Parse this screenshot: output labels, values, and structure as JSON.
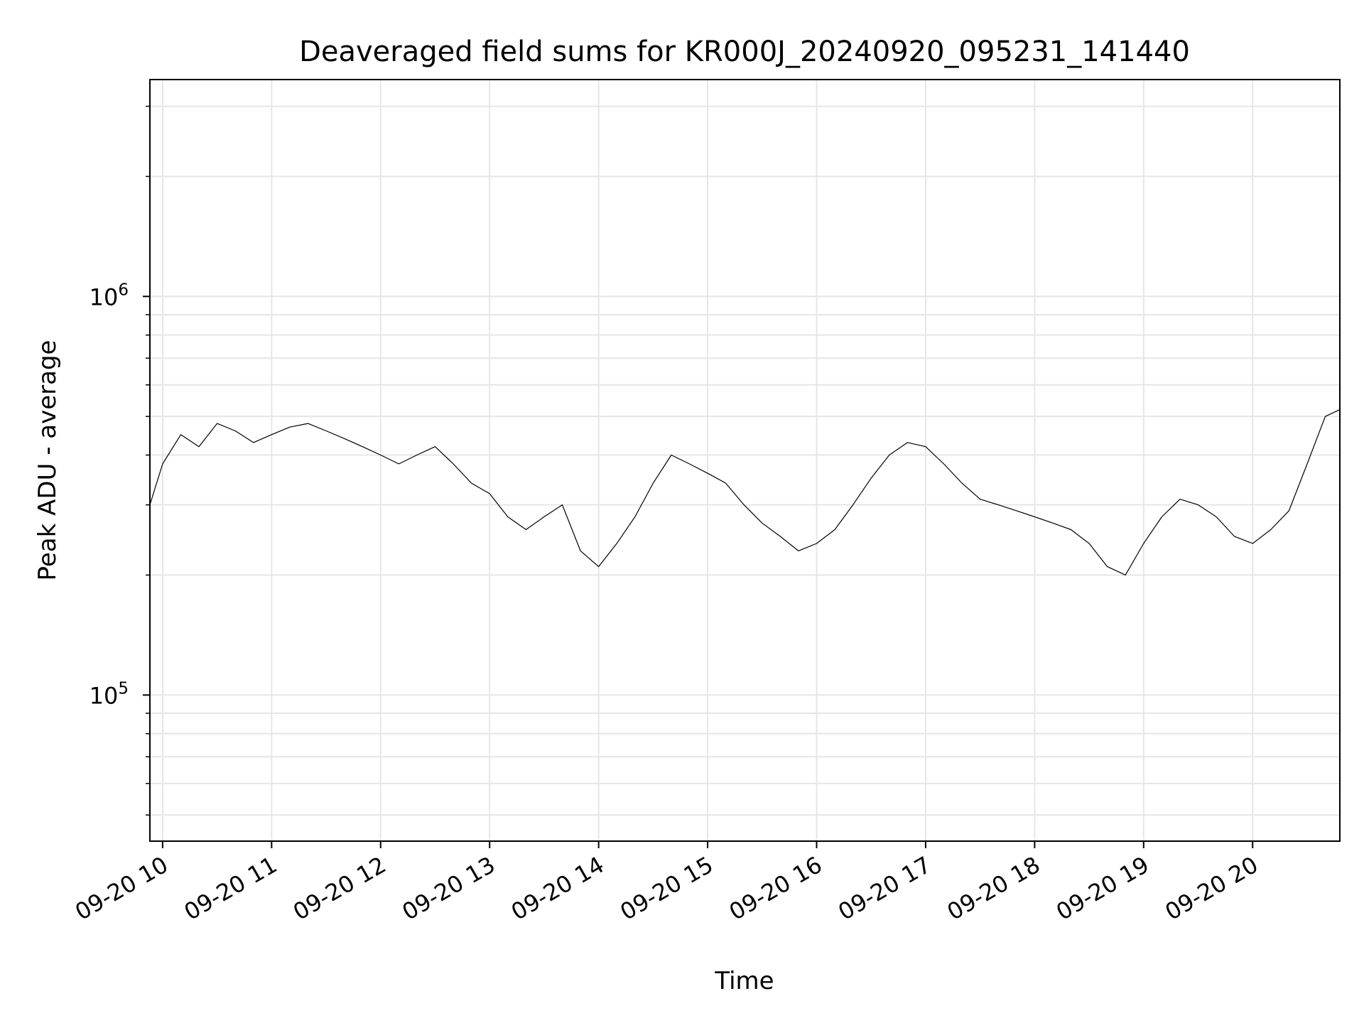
{
  "chart_data": {
    "type": "line",
    "title": "Deaveraged field sums for KR000J_20240920_095231_141440",
    "xlabel": "Time",
    "ylabel": "Peak ADU - average",
    "yscale": "log",
    "grid": true,
    "line_color": "#000000",
    "grid_color": "#e6e6e6",
    "xlim": [
      "2024-09-20 09:53",
      "2024-09-20 20:48"
    ],
    "ylim": [
      43000,
      3500000
    ],
    "x_ticks": [
      {
        "t": "2024-09-20 10:00",
        "label": "09-20 10"
      },
      {
        "t": "2024-09-20 11:00",
        "label": "09-20 11"
      },
      {
        "t": "2024-09-20 12:00",
        "label": "09-20 12"
      },
      {
        "t": "2024-09-20 13:00",
        "label": "09-20 13"
      },
      {
        "t": "2024-09-20 14:00",
        "label": "09-20 14"
      },
      {
        "t": "2024-09-20 15:00",
        "label": "09-20 15"
      },
      {
        "t": "2024-09-20 16:00",
        "label": "09-20 16"
      },
      {
        "t": "2024-09-20 17:00",
        "label": "09-20 17"
      },
      {
        "t": "2024-09-20 18:00",
        "label": "09-20 18"
      },
      {
        "t": "2024-09-20 19:00",
        "label": "09-20 19"
      },
      {
        "t": "2024-09-20 20:00",
        "label": "09-20 20"
      }
    ],
    "y_ticks": [
      {
        "value": 100000,
        "base": "10",
        "exp": "5"
      },
      {
        "value": 1000000,
        "base": "10",
        "exp": "6"
      }
    ],
    "series": [
      {
        "x": [
          "2024-09-20 09:53",
          "2024-09-20 10:00",
          "2024-09-20 10:10",
          "2024-09-20 10:20",
          "2024-09-20 10:30",
          "2024-09-20 10:40",
          "2024-09-20 10:50",
          "2024-09-20 11:00",
          "2024-09-20 11:10",
          "2024-09-20 11:20",
          "2024-09-20 11:30",
          "2024-09-20 11:40",
          "2024-09-20 11:50",
          "2024-09-20 12:00",
          "2024-09-20 12:10",
          "2024-09-20 12:20",
          "2024-09-20 12:30",
          "2024-09-20 12:40",
          "2024-09-20 12:50",
          "2024-09-20 13:00",
          "2024-09-20 13:10",
          "2024-09-20 13:20",
          "2024-09-20 13:30",
          "2024-09-20 13:40",
          "2024-09-20 13:50",
          "2024-09-20 14:00",
          "2024-09-20 14:10",
          "2024-09-20 14:20",
          "2024-09-20 14:30",
          "2024-09-20 14:40",
          "2024-09-20 14:50",
          "2024-09-20 15:00",
          "2024-09-20 15:10",
          "2024-09-20 15:20",
          "2024-09-20 15:30",
          "2024-09-20 15:40",
          "2024-09-20 15:50",
          "2024-09-20 16:00",
          "2024-09-20 16:10",
          "2024-09-20 16:20",
          "2024-09-20 16:30",
          "2024-09-20 16:40",
          "2024-09-20 16:50",
          "2024-09-20 17:00",
          "2024-09-20 17:10",
          "2024-09-20 17:20",
          "2024-09-20 17:30",
          "2024-09-20 17:40",
          "2024-09-20 17:50",
          "2024-09-20 18:00",
          "2024-09-20 18:10",
          "2024-09-20 18:20",
          "2024-09-20 18:30",
          "2024-09-20 18:40",
          "2024-09-20 18:50",
          "2024-09-20 19:00",
          "2024-09-20 19:10",
          "2024-09-20 19:20",
          "2024-09-20 19:30",
          "2024-09-20 19:40",
          "2024-09-20 19:50",
          "2024-09-20 20:00",
          "2024-09-20 20:10",
          "2024-09-20 20:20",
          "2024-09-20 20:30",
          "2024-09-20 20:40",
          "2024-09-20 20:48"
        ],
        "y": [
          300000,
          380000,
          450000,
          420000,
          480000,
          460000,
          430000,
          450000,
          470000,
          480000,
          460000,
          440000,
          420000,
          400000,
          380000,
          400000,
          420000,
          380000,
          340000,
          320000,
          280000,
          260000,
          280000,
          300000,
          230000,
          210000,
          240000,
          280000,
          340000,
          400000,
          380000,
          360000,
          340000,
          300000,
          270000,
          250000,
          230000,
          240000,
          260000,
          300000,
          350000,
          400000,
          430000,
          420000,
          380000,
          340000,
          310000,
          300000,
          290000,
          280000,
          270000,
          260000,
          240000,
          210000,
          200000,
          240000,
          280000,
          310000,
          300000,
          280000,
          250000,
          240000,
          260000,
          290000,
          380000,
          500000,
          520000
        ]
      }
    ]
  }
}
